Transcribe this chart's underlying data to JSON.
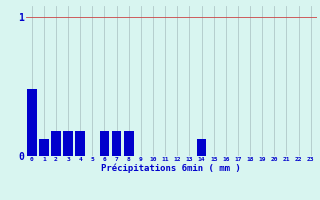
{
  "categories": [
    0,
    1,
    2,
    3,
    4,
    5,
    6,
    7,
    8,
    9,
    10,
    11,
    12,
    13,
    14,
    15,
    16,
    17,
    18,
    19,
    20,
    21,
    22,
    23
  ],
  "values": [
    0.48,
    0.12,
    0.18,
    0.18,
    0.18,
    0.0,
    0.18,
    0.18,
    0.18,
    0.0,
    0.0,
    0.0,
    0.0,
    0.0,
    0.12,
    0.0,
    0.0,
    0.0,
    0.0,
    0.0,
    0.0,
    0.0,
    0.0,
    0.0
  ],
  "bar_color": "#0000cc",
  "background_color": "#d8f5f0",
  "grid_color": "#b0c8c8",
  "xlabel": "Précipitations 6min ( mm )",
  "xlabel_color": "#0000cc",
  "ytick_labels": [
    "0",
    "1"
  ],
  "ytick_values": [
    0,
    1
  ],
  "ylim": [
    0,
    1.08
  ],
  "xlim": [
    -0.5,
    23.5
  ],
  "tick_color": "#0000cc",
  "bar_width": 0.8,
  "title": ""
}
